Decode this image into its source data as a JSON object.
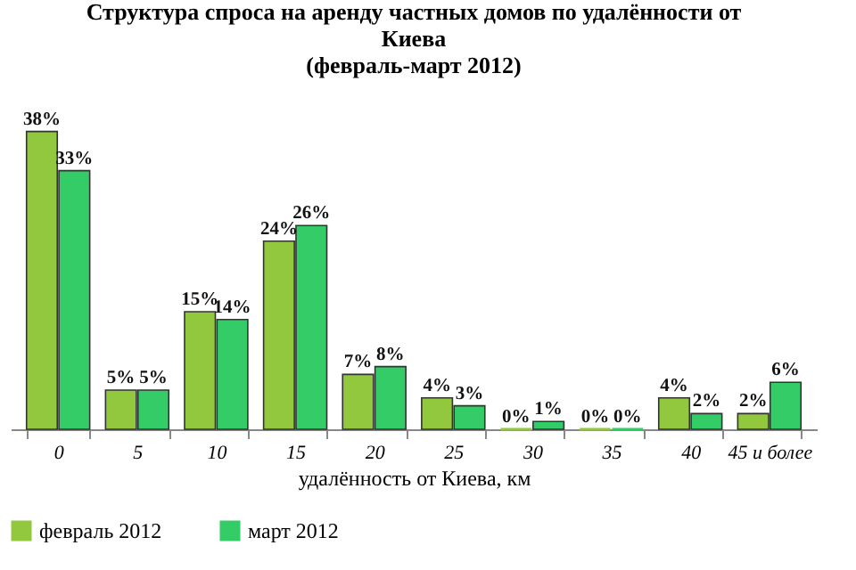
{
  "chart_data": {
    "type": "bar",
    "title": "Структура спроса на аренду частных домов по удалённости от Киева",
    "subtitle": "(февраль-март 2012)",
    "xlabel": "удалённость от Киева, км",
    "categories": [
      "0",
      "5",
      "10",
      "15",
      "20",
      "25",
      "30",
      "35",
      "40",
      "45 и более"
    ],
    "series": [
      {
        "name": "февраль 2012",
        "color": "#92c83e",
        "values": [
          38,
          5,
          15,
          24,
          7,
          4,
          0,
          0,
          4,
          2
        ],
        "value_labels": [
          "38%",
          "5%",
          "15%",
          "24%",
          "7%",
          "4%",
          "0%",
          "0%",
          "4%",
          "2%"
        ]
      },
      {
        "name": "март 2012",
        "color": "#33cc66",
        "values": [
          33,
          5,
          14,
          26,
          8,
          3,
          1,
          0,
          2,
          6
        ],
        "value_labels": [
          "33%",
          "5%",
          "14%",
          "26%",
          "8%",
          "3%",
          "1%",
          "0%",
          "2%",
          "6%"
        ]
      }
    ],
    "legend": "bottom",
    "grid": false,
    "tick_labels": "x"
  }
}
